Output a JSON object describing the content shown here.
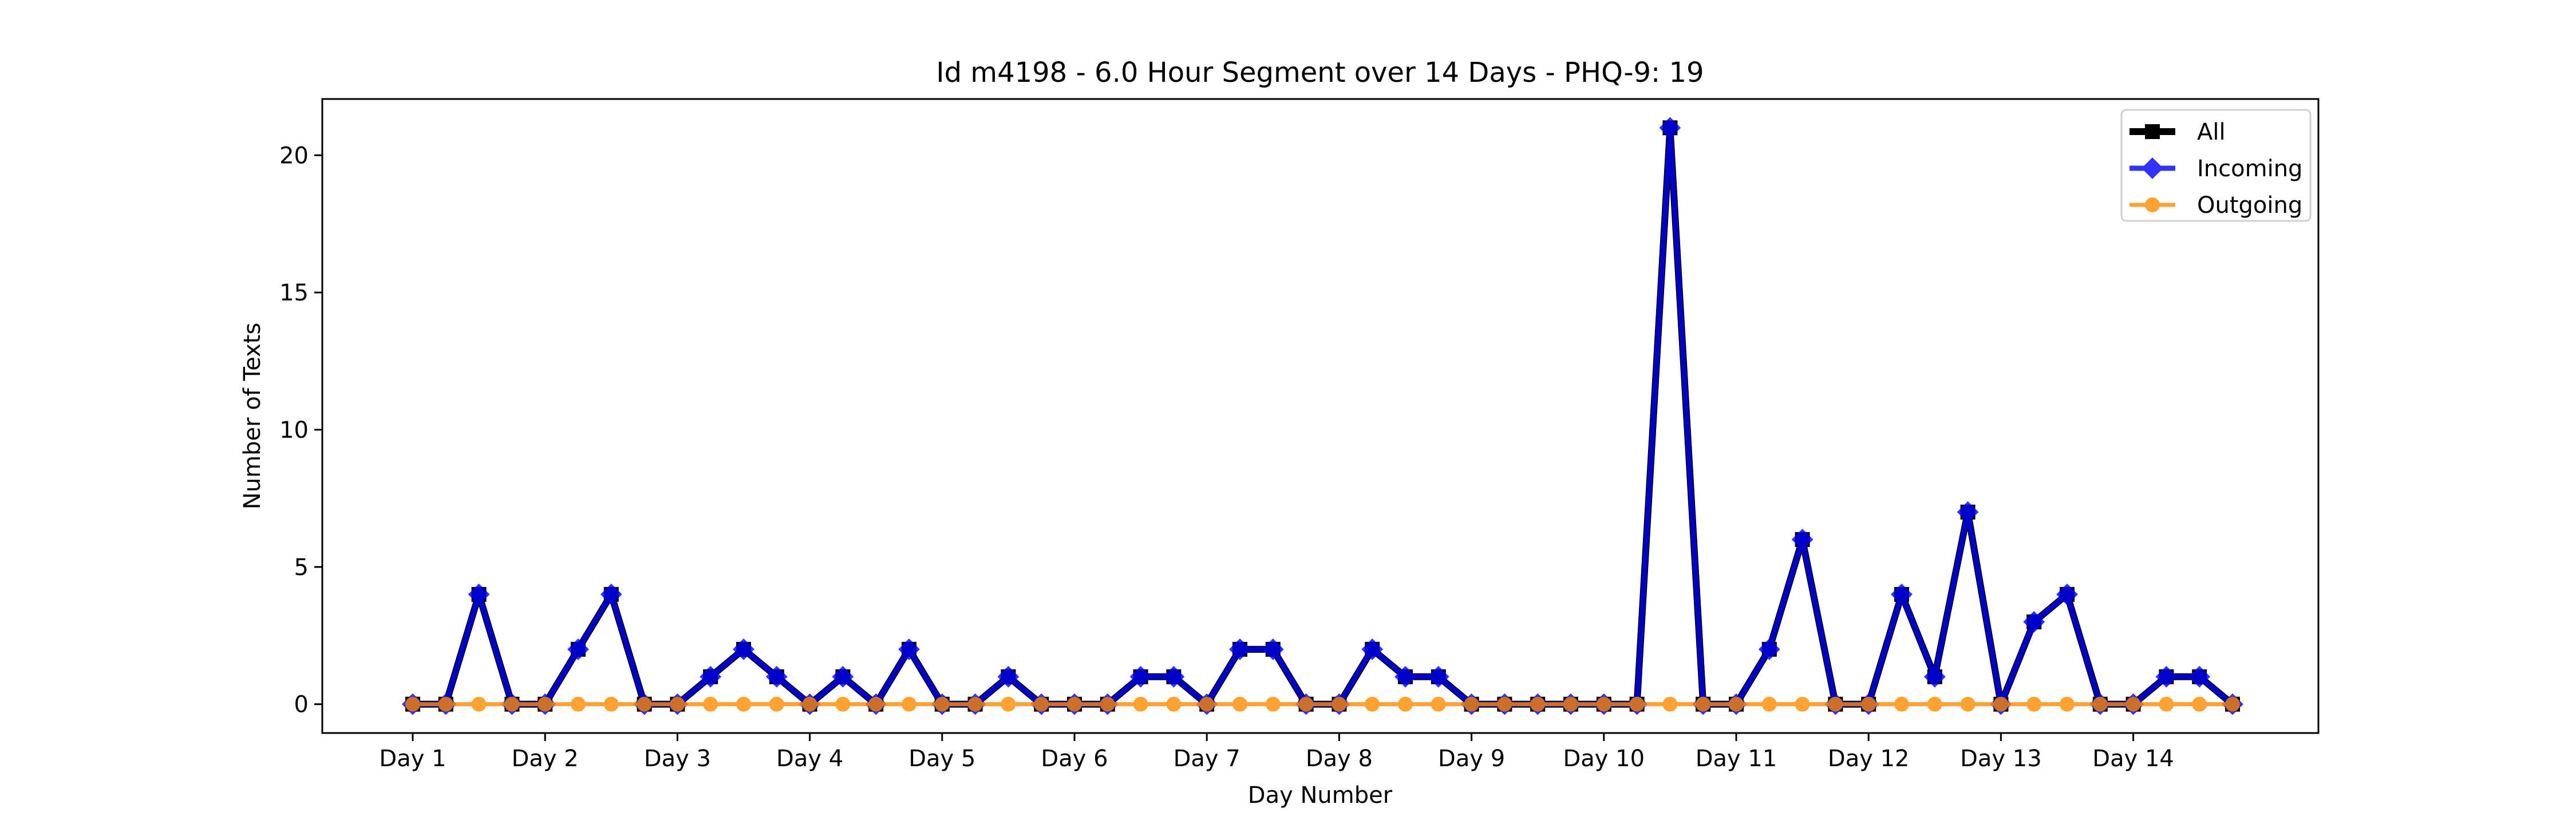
{
  "chart_data": {
    "type": "line",
    "title": "Id m4198 - 6.0 Hour Segment over 14 Days - PHQ-9: 19",
    "xlabel": "Day Number",
    "ylabel": "Number of Texts",
    "x_tick_labels": [
      "Day 1",
      "Day 2",
      "Day 3",
      "Day 4",
      "Day 5",
      "Day 6",
      "Day 7",
      "Day 8",
      "Day 9",
      "Day 10",
      "Day 11",
      "Day 12",
      "Day 13",
      "Day 14"
    ],
    "y_ticks": [
      0,
      5,
      10,
      15,
      20
    ],
    "ylim": [
      -1.05,
      22.05
    ],
    "segments_per_day": 4,
    "grid": false,
    "legend_position": "upper right",
    "series": [
      {
        "name": "All",
        "color": "#000000",
        "marker": "square",
        "values": [
          0,
          0,
          4,
          0,
          0,
          2,
          4,
          0,
          0,
          1,
          2,
          1,
          0,
          1,
          0,
          2,
          0,
          0,
          1,
          0,
          0,
          0,
          1,
          1,
          0,
          2,
          2,
          0,
          0,
          2,
          1,
          1,
          0,
          0,
          0,
          0,
          0,
          0,
          21,
          0,
          0,
          2,
          6,
          0,
          0,
          4,
          1,
          7,
          0,
          3,
          4,
          0,
          0,
          1,
          1,
          0
        ]
      },
      {
        "name": "Incoming",
        "color": "#0000ff",
        "marker": "diamond",
        "values": [
          0,
          0,
          4,
          0,
          0,
          2,
          4,
          0,
          0,
          1,
          2,
          1,
          0,
          1,
          0,
          2,
          0,
          0,
          1,
          0,
          0,
          0,
          1,
          1,
          0,
          2,
          2,
          0,
          0,
          2,
          1,
          1,
          0,
          0,
          0,
          0,
          0,
          0,
          21,
          0,
          0,
          2,
          6,
          0,
          0,
          4,
          1,
          7,
          0,
          3,
          4,
          0,
          0,
          1,
          1,
          0
        ]
      },
      {
        "name": "Outgoing",
        "color": "#ff8c00",
        "marker": "circle",
        "values": [
          0,
          0,
          0,
          0,
          0,
          0,
          0,
          0,
          0,
          0,
          0,
          0,
          0,
          0,
          0,
          0,
          0,
          0,
          0,
          0,
          0,
          0,
          0,
          0,
          0,
          0,
          0,
          0,
          0,
          0,
          0,
          0,
          0,
          0,
          0,
          0,
          0,
          0,
          0,
          0,
          0,
          0,
          0,
          0,
          0,
          0,
          0,
          0,
          0,
          0,
          0,
          0,
          0,
          0,
          0,
          0
        ]
      }
    ]
  }
}
